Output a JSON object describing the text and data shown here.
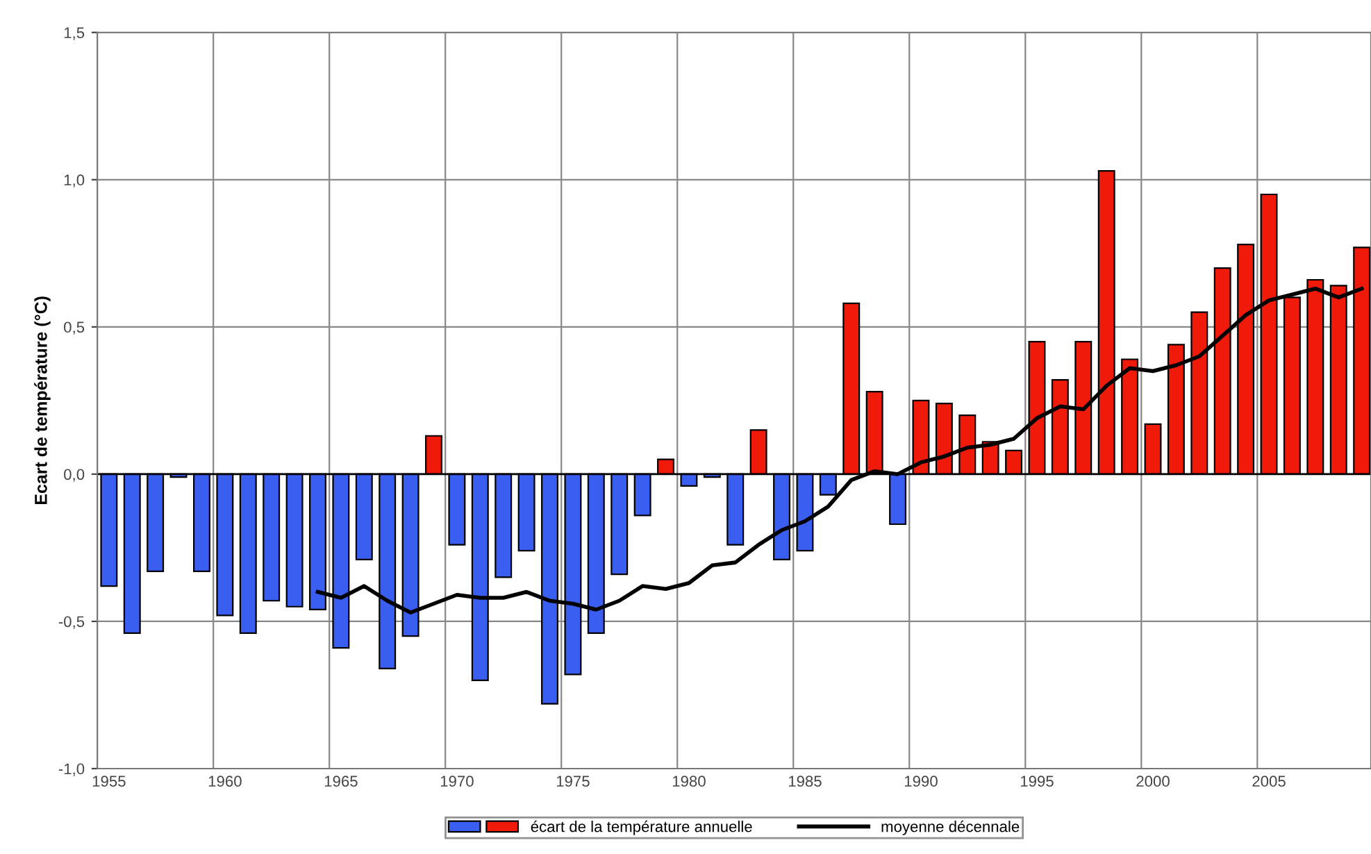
{
  "chart_data": {
    "type": "bar",
    "ylabel": "Ecart de température (°C)",
    "categories": [
      "1955",
      null,
      null,
      null,
      null,
      "1960",
      null,
      null,
      null,
      null,
      "1965",
      null,
      null,
      null,
      null,
      "1970",
      null,
      null,
      null,
      null,
      "1975",
      null,
      null,
      null,
      null,
      "1980",
      null,
      null,
      null,
      null,
      "1985",
      null,
      null,
      null,
      null,
      "1990",
      null,
      null,
      null,
      null,
      "1995",
      null,
      null,
      null,
      null,
      "2000",
      null,
      null,
      null,
      null,
      "2005",
      null,
      null,
      null,
      null
    ],
    "series": [
      {
        "name": "écart de la température annuelle",
        "colors": [
          "#3a5ff0",
          "#3a5ff0",
          "#3a5ff0",
          "#3a5ff0",
          "#3a5ff0",
          "#3a5ff0",
          "#3a5ff0",
          "#3a5ff0",
          "#3a5ff0",
          "#3a5ff0",
          "#3a5ff0",
          "#3a5ff0",
          "#3a5ff0",
          "#3a5ff0",
          "#f01a0a",
          "#3a5ff0",
          "#3a5ff0",
          "#3a5ff0",
          "#3a5ff0",
          "#3a5ff0",
          "#3a5ff0",
          "#3a5ff0",
          "#3a5ff0",
          "#3a5ff0",
          "#f01a0a",
          "#3a5ff0",
          "#3a5ff0",
          "#3a5ff0",
          "#f01a0a",
          "#3a5ff0",
          "#3a5ff0",
          "#3a5ff0",
          "#f01a0a",
          "#f01a0a",
          "#3a5ff0",
          "#f01a0a",
          "#f01a0a",
          "#f01a0a",
          "#f01a0a",
          "#f01a0a",
          "#f01a0a",
          "#f01a0a",
          "#f01a0a",
          "#f01a0a",
          "#f01a0a",
          "#f01a0a",
          "#f01a0a",
          "#f01a0a",
          "#f01a0a",
          "#f01a0a",
          "#f01a0a",
          "#f01a0a",
          "#f01a0a",
          "#f01a0a",
          "#f01a0a"
        ],
        "values": [
          -0.38,
          -0.54,
          -0.33,
          -0.01,
          -0.33,
          -0.48,
          -0.54,
          -0.43,
          -0.45,
          -0.46,
          -0.59,
          -0.29,
          -0.66,
          -0.55,
          0.13,
          -0.24,
          -0.7,
          -0.35,
          -0.26,
          -0.78,
          -0.68,
          -0.54,
          -0.34,
          -0.14,
          0.05,
          -0.04,
          -0.01,
          -0.24,
          0.15,
          -0.29,
          -0.26,
          -0.07,
          0.58,
          0.28,
          -0.17,
          0.25,
          0.24,
          0.2,
          0.11,
          0.08,
          0.45,
          0.32,
          0.45,
          1.03,
          0.39,
          0.17,
          0.44,
          0.55,
          0.7,
          0.78,
          0.95,
          0.6,
          0.66,
          0.64,
          0.77
        ]
      },
      {
        "name": "moyenne décennale",
        "type": "line",
        "color": "#000000",
        "values": [
          null,
          null,
          null,
          null,
          null,
          null,
          null,
          null,
          null,
          -0.4,
          -0.42,
          -0.38,
          -0.43,
          -0.47,
          -0.44,
          -0.41,
          -0.42,
          -0.42,
          -0.4,
          -0.43,
          -0.44,
          -0.46,
          -0.43,
          -0.38,
          -0.39,
          -0.37,
          -0.31,
          -0.3,
          -0.24,
          -0.19,
          -0.16,
          -0.11,
          -0.02,
          0.01,
          0.0,
          0.04,
          0.06,
          0.09,
          0.1,
          0.12,
          0.19,
          0.23,
          0.22,
          0.3,
          0.36,
          0.35,
          0.37,
          0.4,
          0.47,
          0.54,
          0.59,
          0.61,
          0.63,
          0.6,
          0.63
        ]
      }
    ],
    "ylim": [
      -1.0,
      1.5
    ],
    "yticks": [
      {
        "value": -1.0,
        "label": "-1,0"
      },
      {
        "value": -0.5,
        "label": "-0,5"
      },
      {
        "value": 0.0,
        "label": "0,0"
      },
      {
        "value": 0.5,
        "label": "0,5"
      },
      {
        "value": 1.0,
        "label": "1,0"
      },
      {
        "value": 1.5,
        "label": "1,5"
      }
    ],
    "grid": true,
    "legend": "bottom"
  }
}
